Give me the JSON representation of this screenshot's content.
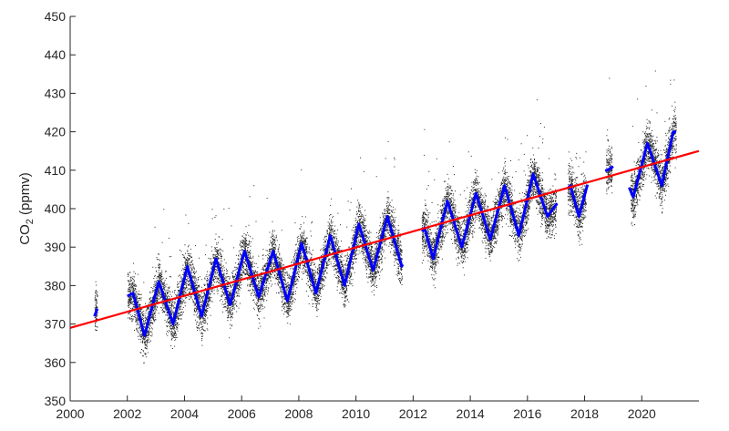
{
  "chart_data": {
    "type": "scatter",
    "title": "",
    "xlabel": "",
    "ylabel": "CO2 (ppmv)",
    "ylabel_main": "CO",
    "ylabel_sub": "2",
    "ylabel_unit": " (ppmv)",
    "xlim": [
      2000,
      2022
    ],
    "ylim": [
      350,
      450
    ],
    "x_ticks": [
      2000,
      2002,
      2004,
      2006,
      2008,
      2010,
      2012,
      2014,
      2016,
      2018,
      2020
    ],
    "x_tick_labels": [
      "2000",
      "2002",
      "2004",
      "2006",
      "2008",
      "2010",
      "2012",
      "2014",
      "2016",
      "2018",
      "2020"
    ],
    "y_ticks": [
      350,
      360,
      370,
      380,
      390,
      400,
      410,
      420,
      430,
      440,
      450
    ],
    "y_tick_labels": [
      "350",
      "360",
      "370",
      "380",
      "390",
      "400",
      "410",
      "420",
      "430",
      "440",
      "450"
    ],
    "grid": false,
    "series": [
      {
        "kind": "points",
        "color": "#000000",
        "segments": [
          {
            "x0": 2000.85,
            "x1": 2000.95
          },
          {
            "x0": 2002.0,
            "x1": 2011.6
          },
          {
            "x0": 2012.3,
            "x1": 2017.0
          },
          {
            "x0": 2017.4,
            "x1": 2018.05
          },
          {
            "x0": 2018.75,
            "x1": 2018.95
          },
          {
            "x0": 2019.6,
            "x1": 2021.2
          }
        ]
      },
      {
        "kind": "seasonal-mean",
        "color": "#0000ff",
        "x": [
          2000.9,
          2002.2,
          2002.6,
          2003.1,
          2003.6,
          2004.1,
          2004.6,
          2005.1,
          2005.6,
          2006.1,
          2006.6,
          2007.1,
          2007.6,
          2008.1,
          2008.6,
          2009.1,
          2009.6,
          2010.1,
          2010.6,
          2011.1,
          2011.6,
          2012.4,
          2012.7,
          2013.2,
          2013.7,
          2014.2,
          2014.7,
          2015.2,
          2015.7,
          2016.2,
          2016.7,
          2017.5,
          2017.8,
          2018.2,
          2018.8,
          2019.2,
          2019.7,
          2020.2,
          2020.7,
          2021.1
        ],
        "y": [
          373,
          378,
          367,
          381,
          370,
          385,
          372,
          387,
          375,
          389,
          377,
          389,
          376,
          391,
          378,
          393,
          380,
          396,
          384,
          398,
          385,
          395,
          387,
          402,
          390,
          404,
          392,
          406,
          393,
          409,
          398,
          406,
          398,
          409,
          410,
          412,
          403,
          417,
          406,
          420
        ]
      },
      {
        "kind": "trend-line",
        "color": "#ff0000",
        "x": [
          2000,
          2022
        ],
        "y": [
          369,
          415
        ]
      }
    ]
  }
}
